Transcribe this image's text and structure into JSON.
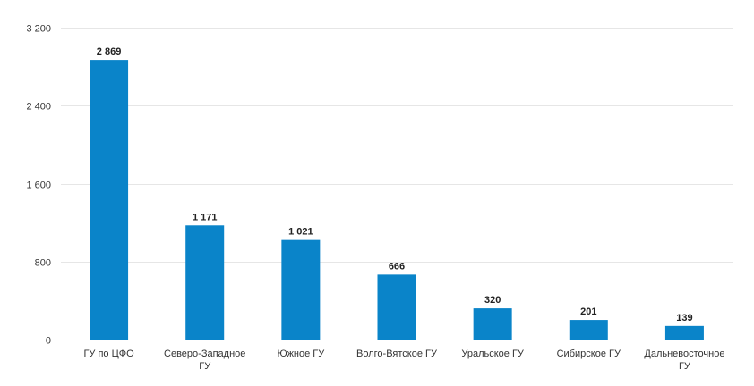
{
  "chart_data": {
    "type": "bar",
    "categories": [
      [
        "ГУ по ЦФО"
      ],
      [
        "Северо-Западное",
        "ГУ"
      ],
      [
        "Южное ГУ"
      ],
      [
        "Волго-Вятское ГУ"
      ],
      [
        "Уральское ГУ"
      ],
      [
        "Сибирское ГУ"
      ],
      [
        "Дальневосточное",
        "ГУ"
      ]
    ],
    "values": [
      2869,
      1171,
      1021,
      666,
      320,
      201,
      139
    ],
    "value_labels": [
      "2 869",
      "1 171",
      "1 021",
      "666",
      "320",
      "201",
      "139"
    ],
    "ylim": [
      0,
      3200
    ],
    "yticks": [
      0,
      800,
      1600,
      2400,
      3200
    ],
    "ytick_labels": [
      "0",
      "800",
      "1 600",
      "2 400",
      "3 200"
    ],
    "title": "",
    "xlabel": "",
    "ylabel": "",
    "grid": true,
    "bar_color": "#0a84c9"
  }
}
